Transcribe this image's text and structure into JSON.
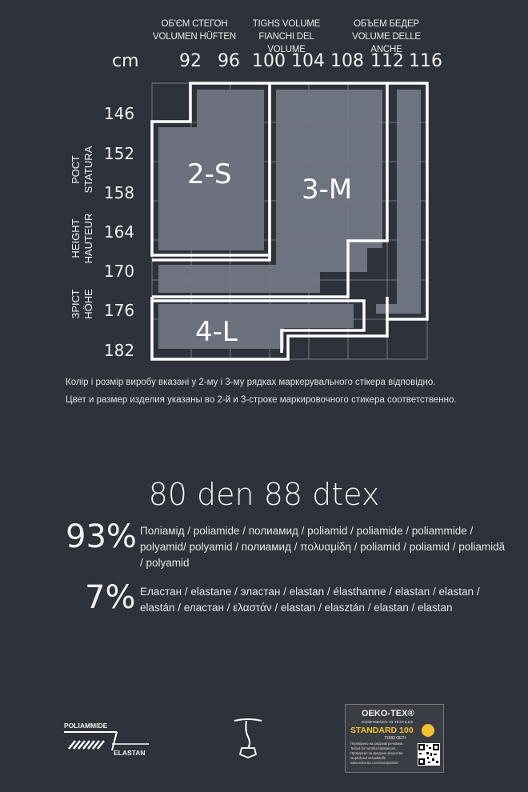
{
  "headers": {
    "ua": "ОБ'ЄМ СТЕГОН",
    "de": "VOLUMEN HÜFTEN",
    "en": "TIGHS VOLUME",
    "it": "FIANCHI DEL VOLUME",
    "ru": "ОБЪЕМ БЕДЕР",
    "it2": "VOLUME DELLE ANCHE"
  },
  "unit": "cm",
  "hips": [
    "92",
    "96",
    "100",
    "104",
    "108",
    "112",
    "116"
  ],
  "heights": [
    "146",
    "152",
    "158",
    "164",
    "170",
    "176",
    "182"
  ],
  "side_labels": {
    "height1": "РОСТ",
    "height2": "STATURA",
    "height3": "HEIGHT",
    "height4": "HAUTEUR",
    "height5": "ЗРІСТ",
    "height6": "HÖHE"
  },
  "sizes": {
    "s": "2-S",
    "m": "3-M",
    "l": "4-L"
  },
  "notes": {
    "ua": "Колір і розмір виробу вказані у 2-му і 3-му рядках маркерувального стікера відповідно.",
    "ru": "Цвет и размер изделия указаны во 2-й и 3-строке маркировочного стикера соответственно."
  },
  "density": "80 den  88 dtex",
  "composition": [
    {
      "percent": "93%",
      "text": "Поліамід / poliamide / полиамид / poliamid / poliamide / poliammide / polyamid/ polyamid / полиамид / πολυαμίδη / poliamid / poliamid / poliamidă / polyamid"
    },
    {
      "percent": "7%",
      "text": "Еластан / elastane / эластан / elastan / élasthanne / elastan / elastan / elastán / еластан / ελαστάν / elastan / elasztán / elastan / elastan"
    }
  ],
  "footer": {
    "fiber_top": "POLIAMMIDE",
    "fiber_bottom": "ELASTAN",
    "oeko_brand": "OEKO-TEX®",
    "oeko_sub": "CONFIDENCE IN TEXTILES",
    "oeko_std": "STANDARD 100",
    "oeko_code": "71683 OETI",
    "oeko_note1": "Перевірено на шкідливі речовини.",
    "oeko_note2": "Tested for harmful substances.",
    "oeko_note3": "Проверено на вредные вещества.",
    "oeko_note4": "Geprüft auf Schadstoffe",
    "oeko_url": "www.oeko-tex.com/standard100"
  },
  "colors": {
    "background": "#2e323a",
    "cell": "#7a7f8a",
    "line": "#ffffff"
  }
}
